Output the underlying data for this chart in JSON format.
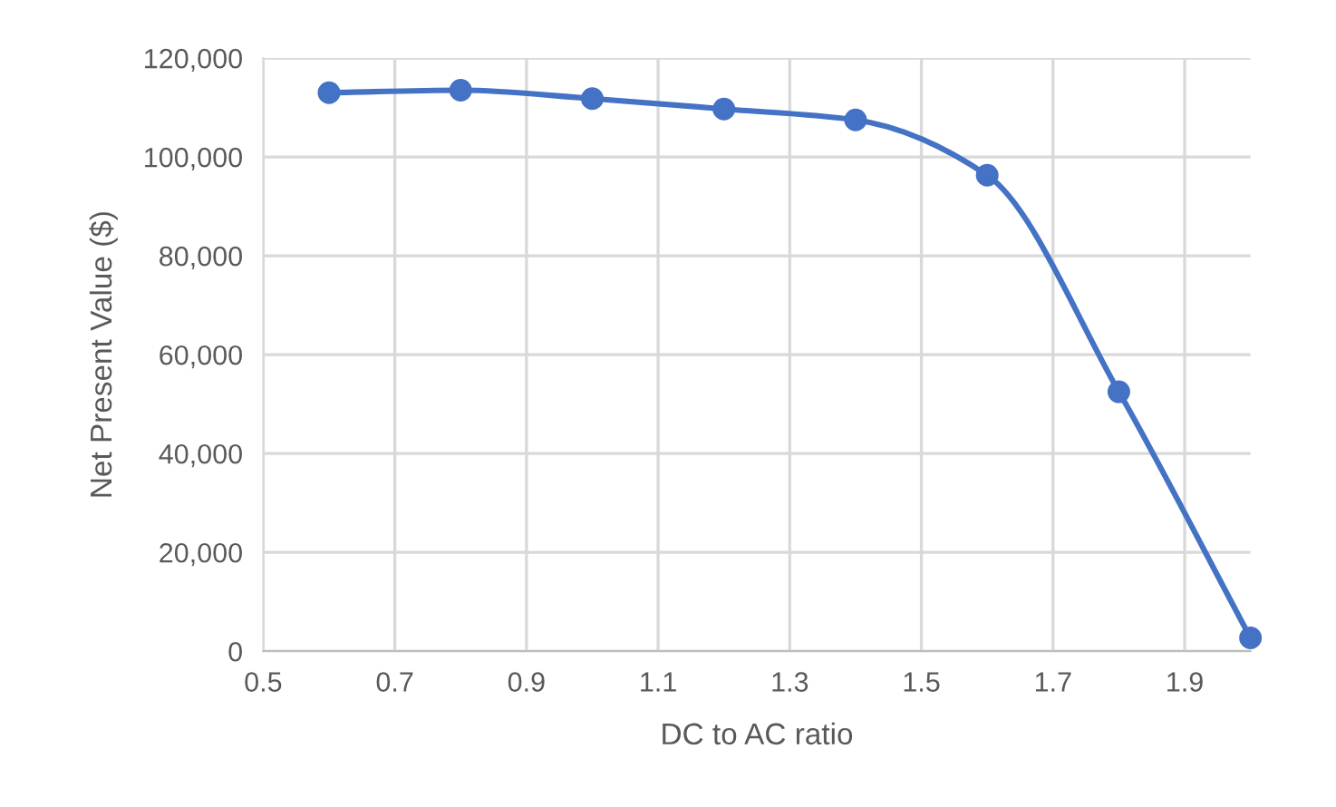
{
  "chart_data": {
    "type": "line",
    "xlabel": "DC to AC ratio",
    "ylabel": "Net Present Value ($)",
    "x": [
      0.6,
      0.8,
      1.0,
      1.2,
      1.4,
      1.6,
      1.8,
      2.0
    ],
    "series": [
      {
        "color": "#4472c4",
        "values": [
          113000,
          113500,
          111800,
          109700,
          107500,
          96300,
          52500,
          2700
        ]
      }
    ],
    "xlim": [
      0.5,
      2.0
    ],
    "xticks": [
      0.5,
      0.7,
      0.9,
      1.1,
      1.3,
      1.5,
      1.7,
      1.9
    ],
    "ylim": [
      0,
      120000
    ],
    "yticks": [
      {
        "value": 0,
        "label": "0"
      },
      {
        "value": 20000,
        "label": "20,000"
      },
      {
        "value": 40000,
        "label": "40,000"
      },
      {
        "value": 60000,
        "label": "60,000"
      },
      {
        "value": 80000,
        "label": "80,000"
      },
      {
        "value": 100000,
        "label": "100,000"
      },
      {
        "value": 120000,
        "label": "120,000"
      }
    ],
    "grid": true,
    "marker": "circle",
    "line_style": "solid"
  }
}
